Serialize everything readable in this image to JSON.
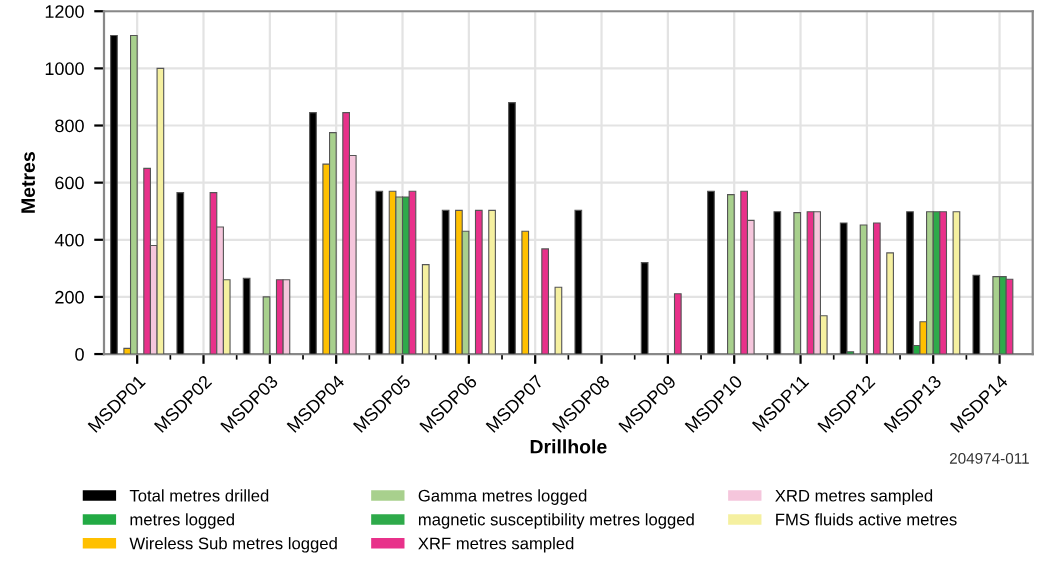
{
  "chart_data": {
    "type": "bar",
    "xlabel": "Drillhole",
    "ylabel": "Metres",
    "categories": [
      "MSDP01",
      "MSDP02",
      "MSDP03",
      "MSDP04",
      "MSDP05",
      "MSDP06",
      "MSDP07",
      "MSDP08",
      "MSDP09",
      "MSDP10",
      "MSDP11",
      "MSDP12",
      "MSDP13",
      "MSDP14"
    ],
    "series": [
      {
        "name": "Total metres drilled",
        "color": "#000000",
        "values": [
          1115,
          565,
          265,
          845,
          570,
          503,
          880,
          503,
          320,
          570,
          498,
          459,
          498,
          276
        ]
      },
      {
        "name": "metres logged",
        "color": "#22aa44",
        "values": [
          null,
          null,
          null,
          null,
          null,
          null,
          null,
          null,
          null,
          null,
          null,
          8,
          30,
          null
        ]
      },
      {
        "name": "Wireless Sub metres logged",
        "color": "#ffc000",
        "values": [
          20,
          null,
          null,
          665,
          570,
          503,
          430,
          null,
          null,
          null,
          null,
          null,
          113,
          null
        ]
      },
      {
        "name": "Gamma metres logged",
        "color": "#a8d08d",
        "values": [
          1115,
          null,
          200,
          775,
          550,
          430,
          null,
          null,
          null,
          558,
          495,
          452,
          498,
          271
        ]
      },
      {
        "name": "magnetic susceptibility metres logged",
        "color": "#2eaa4a",
        "values": [
          null,
          null,
          null,
          null,
          550,
          null,
          null,
          null,
          null,
          null,
          null,
          null,
          498,
          271
        ]
      },
      {
        "name": "XRF metres sampled",
        "color": "#e8318a",
        "values": [
          650,
          565,
          260,
          845,
          570,
          503,
          368,
          null,
          211,
          570,
          498,
          459,
          498,
          262
        ]
      },
      {
        "name": "XRD metres sampled",
        "color": "#f5c6dc",
        "values": [
          380,
          445,
          260,
          695,
          null,
          null,
          null,
          null,
          null,
          468,
          498,
          null,
          null,
          null
        ]
      },
      {
        "name": "FMS fluids active metres",
        "color": "#f5f0a0",
        "values": [
          1000,
          260,
          null,
          null,
          313,
          503,
          234,
          null,
          null,
          null,
          134,
          354,
          498,
          null
        ]
      }
    ],
    "ylim": [
      0,
      1200
    ],
    "yticks": [
      0,
      200,
      400,
      600,
      800,
      1000,
      1200
    ],
    "grid": true,
    "legend": "bottom",
    "annotations": [
      "204974-011"
    ]
  }
}
